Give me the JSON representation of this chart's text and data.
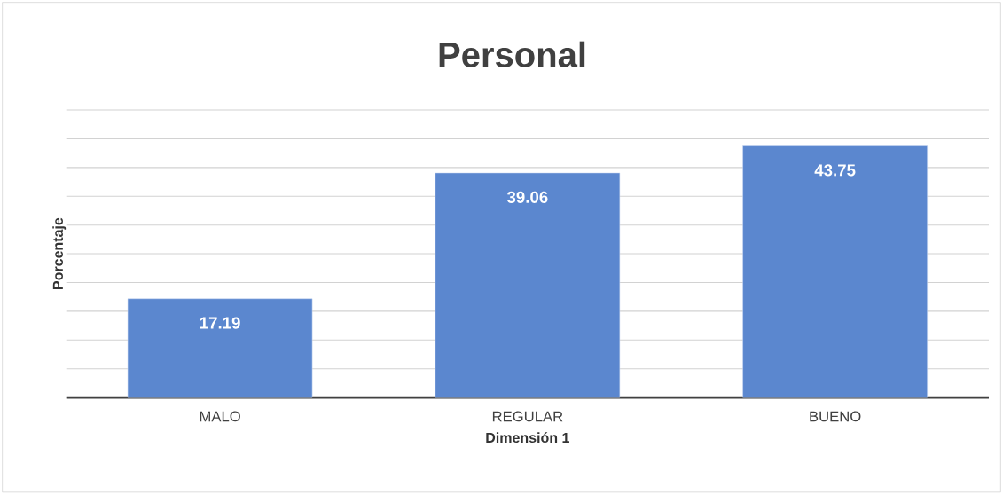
{
  "chart_data": {
    "type": "bar",
    "title": "Personal",
    "xlabel": "Dimensión 1",
    "ylabel": "Porcentaje",
    "categories": [
      "MALO",
      "REGULAR",
      "BUENO"
    ],
    "values": [
      17.19,
      39.06,
      43.75
    ],
    "color": "#5b87cf",
    "ylim": [
      0,
      50
    ],
    "yticks": [
      {
        "value": 0,
        "label": null
      },
      {
        "value": 5,
        "label": null
      },
      {
        "value": 10,
        "label": null
      },
      {
        "value": 15,
        "label": null
      },
      {
        "value": 20,
        "label": null
      },
      {
        "value": 25,
        "label": null
      },
      {
        "value": 30,
        "label": null
      },
      {
        "value": 35,
        "label": null
      },
      {
        "value": 40,
        "label": null
      },
      {
        "value": 45,
        "label": null
      },
      {
        "value": 50,
        "label": null
      }
    ],
    "grid": "y",
    "tick_labels": "x",
    "data_labels": true
  }
}
